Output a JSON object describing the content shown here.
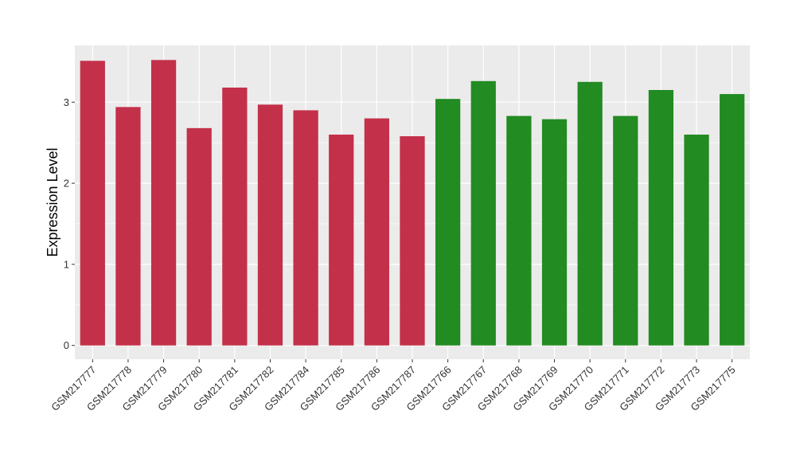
{
  "chart_data": {
    "type": "bar",
    "title": "",
    "xlabel": "",
    "ylabel": "Expression Level",
    "ylim": [
      -0.17,
      3.7
    ],
    "yticks": [
      0,
      1,
      2,
      3
    ],
    "grid": true,
    "legend": "none",
    "colors": {
      "group_a": "#c3304a",
      "group_b": "#228b22",
      "panel": "#ebebeb",
      "grid": "#ffffff"
    },
    "categories": [
      "GSM217777",
      "GSM217778",
      "GSM217779",
      "GSM217780",
      "GSM217781",
      "GSM217782",
      "GSM217784",
      "GSM217785",
      "GSM217786",
      "GSM217787",
      "GSM217766",
      "GSM217767",
      "GSM217768",
      "GSM217769",
      "GSM217770",
      "GSM217771",
      "GSM217772",
      "GSM217773",
      "GSM217775"
    ],
    "values": [
      3.51,
      2.94,
      3.52,
      2.68,
      3.18,
      2.97,
      2.9,
      2.6,
      2.8,
      2.58,
      3.04,
      3.26,
      2.83,
      2.79,
      3.25,
      2.83,
      3.15,
      2.6,
      3.1
    ],
    "groups": [
      "a",
      "a",
      "a",
      "a",
      "a",
      "a",
      "a",
      "a",
      "a",
      "a",
      "b",
      "b",
      "b",
      "b",
      "b",
      "b",
      "b",
      "b",
      "b"
    ]
  }
}
